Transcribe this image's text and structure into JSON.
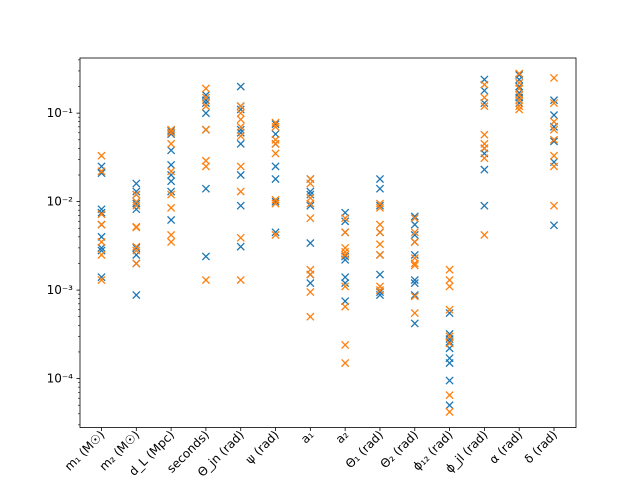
{
  "chart_data": {
    "type": "scatter",
    "title": "",
    "xlabel": "",
    "ylabel": "",
    "y_scale": "log",
    "ylim": [
      2.8e-05,
      0.42
    ],
    "y_ticks": [
      {
        "value": 0.0001,
        "label": "10⁻⁴"
      },
      {
        "value": 0.001,
        "label": "10⁻³"
      },
      {
        "value": 0.01,
        "label": "10⁻²"
      },
      {
        "value": 0.1,
        "label": "10⁻¹"
      }
    ],
    "grid": false,
    "legend": "none",
    "marker": "x",
    "categories": [
      "m₁ (M☉)",
      "m₂ (M☉)",
      "d_L (Mpc)",
      "seconds)",
      "Θ_jn (rad)",
      "ψ (rad)",
      "a₁",
      "a₂",
      "Θ₁ (rad)",
      "Θ₂ (rad)",
      "ϕ₁₂ (rad)",
      "ϕ_jl (rad)",
      "α (rad)",
      "δ (rad)"
    ],
    "series": [
      {
        "color": "#1f77b4",
        "values": [
          [
            0.025,
            0.021,
            0.0082,
            0.0075,
            0.0055,
            0.004,
            0.003,
            0.0028,
            0.0014
          ],
          [
            0.016,
            0.013,
            0.012,
            0.0095,
            0.0082,
            0.003,
            0.0025,
            0.002,
            0.00088
          ],
          [
            0.063,
            0.058,
            0.038,
            0.026,
            0.02,
            0.017,
            0.013,
            0.0062
          ],
          [
            0.16,
            0.14,
            0.13,
            0.1,
            0.065,
            0.014,
            0.0024
          ],
          [
            0.2,
            0.12,
            0.11,
            0.065,
            0.06,
            0.045,
            0.02,
            0.009,
            0.0031
          ],
          [
            0.075,
            0.058,
            0.045,
            0.025,
            0.018,
            0.01,
            0.0045
          ],
          [
            0.018,
            0.013,
            0.012,
            0.009,
            0.0034,
            0.0015,
            0.0012
          ],
          [
            0.0075,
            0.006,
            0.0045,
            0.0024,
            0.0022,
            0.0014,
            0.0012,
            0.00075
          ],
          [
            0.018,
            0.014,
            0.009,
            0.0045,
            0.0025,
            0.0015,
            0.00095,
            0.00088
          ],
          [
            0.0068,
            0.0055,
            0.0042,
            0.0035,
            0.0025,
            0.0013,
            0.0012,
            0.00088,
            0.00042
          ],
          [
            0.00055,
            0.00032,
            0.00028,
            0.00026,
            0.00022,
            0.00017,
            0.00015,
            9.5e-05,
            5e-05
          ],
          [
            0.24,
            0.18,
            0.13,
            0.04,
            0.035,
            0.023,
            0.009
          ],
          [
            0.27,
            0.24,
            0.2,
            0.17,
            0.15,
            0.13
          ],
          [
            0.14,
            0.095,
            0.07,
            0.048,
            0.028,
            0.0054
          ]
        ]
      },
      {
        "color": "#ff7f0e",
        "values": [
          [
            0.033,
            0.022,
            0.0072,
            0.0055,
            0.0035,
            0.0025,
            0.0013
          ],
          [
            0.012,
            0.01,
            0.009,
            0.0052,
            0.0051,
            0.0031,
            0.0028,
            0.002
          ],
          [
            0.065,
            0.06,
            0.045,
            0.022,
            0.012,
            0.0085,
            0.0042,
            0.0035
          ],
          [
            0.19,
            0.15,
            0.12,
            0.065,
            0.029,
            0.025,
            0.0013
          ],
          [
            0.12,
            0.1,
            0.085,
            0.07,
            0.055,
            0.025,
            0.013,
            0.0039,
            0.0013
          ],
          [
            0.078,
            0.07,
            0.05,
            0.045,
            0.035,
            0.0105,
            0.0095,
            0.0042
          ],
          [
            0.018,
            0.016,
            0.011,
            0.0095,
            0.0065,
            0.0017,
            0.0015,
            0.00095,
            0.0005
          ],
          [
            0.0065,
            0.0045,
            0.003,
            0.0027,
            0.0025,
            0.0011,
            0.00065,
            0.00024,
            0.00015
          ],
          [
            0.0095,
            0.0085,
            0.0055,
            0.0045,
            0.0033,
            0.0025,
            0.0011,
            0.001
          ],
          [
            0.0065,
            0.0045,
            0.0035,
            0.0023,
            0.002,
            0.0019,
            0.00085,
            0.00055
          ],
          [
            0.0017,
            0.0013,
            0.0011,
            0.0006,
            0.0003,
            0.00025,
            6.5e-05,
            4.2e-05
          ],
          [
            0.21,
            0.15,
            0.12,
            0.057,
            0.045,
            0.04,
            0.031,
            0.0042
          ],
          [
            0.28,
            0.22,
            0.19,
            0.16,
            0.14,
            0.12,
            0.11
          ],
          [
            0.25,
            0.13,
            0.08,
            0.065,
            0.05,
            0.033,
            0.025,
            0.009
          ]
        ]
      }
    ]
  }
}
